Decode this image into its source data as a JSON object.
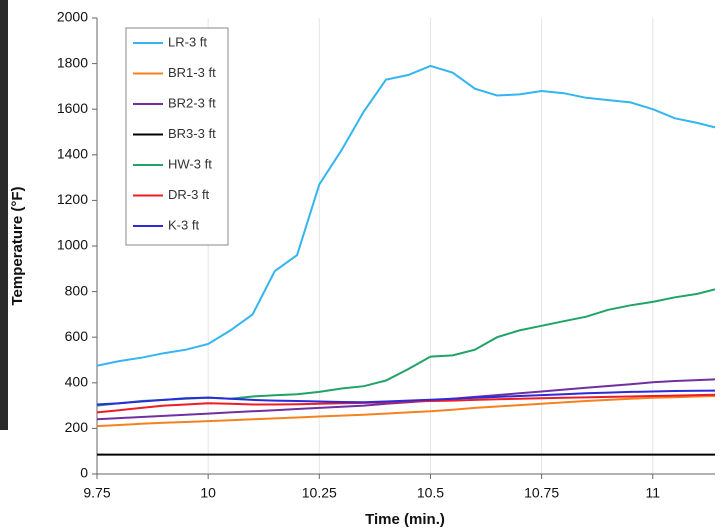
{
  "chart_data": {
    "type": "line",
    "x_label": "Time (min.)",
    "y_label": "Temperature (°F)",
    "x": [
      9.75,
      9.8,
      9.85,
      9.9,
      9.95,
      10,
      10.05,
      10.1,
      10.15,
      10.2,
      10.25,
      10.3,
      10.35,
      10.4,
      10.45,
      10.5,
      10.55,
      10.6,
      10.65,
      10.7,
      10.75,
      10.8,
      10.85,
      10.9,
      10.95,
      11,
      11.05,
      11.1,
      11.14
    ],
    "series": [
      {
        "name": "LR-3 ft",
        "color": "#33b5f0",
        "values": [
          475,
          495,
          510,
          530,
          545,
          570,
          630,
          700,
          890,
          960,
          1270,
          1420,
          1590,
          1730,
          1750,
          1790,
          1760,
          1690,
          1660,
          1665,
          1680,
          1670,
          1650,
          1640,
          1630,
          1600,
          1560,
          1540,
          1520
        ]
      },
      {
        "name": "BR1-3 ft",
        "color": "#f58220",
        "values": [
          210,
          215,
          220,
          225,
          228,
          232,
          236,
          240,
          244,
          248,
          252,
          256,
          260,
          265,
          270,
          275,
          282,
          290,
          296,
          302,
          308,
          314,
          320,
          325,
          330,
          334,
          337,
          340,
          342
        ]
      },
      {
        "name": "BR2-3 ft",
        "color": "#7030a0",
        "values": [
          240,
          245,
          250,
          255,
          260,
          265,
          270,
          275,
          280,
          285,
          290,
          295,
          300,
          308,
          315,
          322,
          330,
          338,
          346,
          354,
          362,
          370,
          378,
          386,
          394,
          402,
          408,
          412,
          415
        ]
      },
      {
        "name": "BR3-3 ft",
        "color": "#000000",
        "values": [
          85,
          85,
          85,
          85,
          85,
          85,
          85,
          85,
          85,
          85,
          85,
          85,
          85,
          85,
          85,
          85,
          85,
          85,
          85,
          85,
          85,
          85,
          85,
          85,
          85,
          85,
          85,
          85,
          85
        ]
      },
      {
        "name": "HW-3 ft",
        "color": "#21a366",
        "values": [
          300,
          310,
          320,
          325,
          330,
          335,
          330,
          340,
          345,
          350,
          360,
          375,
          385,
          410,
          460,
          515,
          520,
          545,
          600,
          630,
          650,
          670,
          690,
          720,
          740,
          755,
          775,
          790,
          810
        ]
      },
      {
        "name": "DR-3 ft",
        "color": "#ee1c25",
        "values": [
          270,
          280,
          290,
          300,
          305,
          310,
          308,
          305,
          305,
          306,
          308,
          310,
          312,
          315,
          318,
          320,
          322,
          325,
          328,
          330,
          332,
          334,
          336,
          338,
          340,
          342,
          344,
          346,
          348
        ]
      },
      {
        "name": "K-3 ft",
        "color": "#2b2bd9",
        "values": [
          305,
          310,
          318,
          325,
          332,
          335,
          330,
          325,
          322,
          320,
          318,
          316,
          315,
          318,
          322,
          326,
          330,
          334,
          338,
          342,
          346,
          350,
          354,
          357,
          360,
          362,
          364,
          365,
          366
        ]
      }
    ],
    "xlim": [
      9.75,
      11.14
    ],
    "xticks": [
      9.75,
      10,
      10.25,
      10.5,
      10.75,
      11
    ],
    "ylim": [
      0,
      2000
    ],
    "yticks": [
      0,
      200,
      400,
      600,
      800,
      1000,
      1200,
      1400,
      1600,
      1800,
      2000
    ],
    "grid": "x",
    "legend": "upper left"
  }
}
